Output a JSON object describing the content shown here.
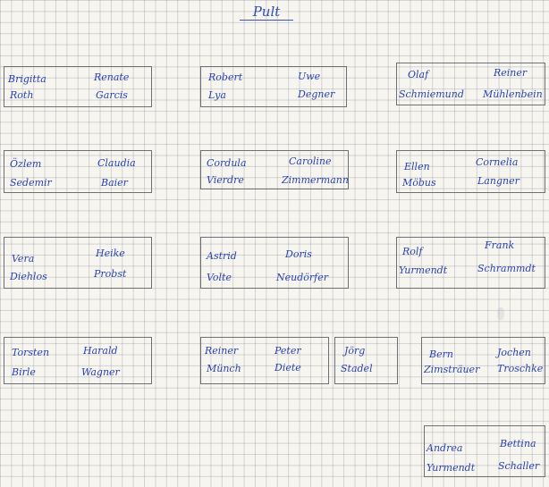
{
  "title": "Pult",
  "desks": [
    {
      "names": [
        [
          "Brigitta",
          "Renate"
        ],
        [
          "Roth",
          "Garcis"
        ]
      ]
    },
    {
      "names": [
        [
          "Robert",
          "Uwe"
        ],
        [
          "Lya",
          "Degner"
        ]
      ]
    },
    {
      "names": [
        [
          "Olaf",
          "Reiner"
        ],
        [
          "Schmiemund",
          "Mühlenbein"
        ]
      ]
    },
    {
      "names": [
        [
          "Özlem",
          "Claudia"
        ],
        [
          "Sedemir",
          "Baier"
        ]
      ]
    },
    {
      "names": [
        [
          "Cordula",
          "Caroline"
        ],
        [
          "Vierdre",
          "Zimmermann"
        ]
      ]
    },
    {
      "names": [
        [
          "Ellen",
          "Cornelia"
        ],
        [
          "Möbus",
          "Langner"
        ]
      ]
    },
    {
      "names": [
        [
          "Vera",
          "Heike"
        ],
        [
          "Diehlos",
          "Probst"
        ]
      ]
    },
    {
      "names": [
        [
          "Astrid",
          "Doris"
        ],
        [
          "Volte",
          "Neudörfer"
        ]
      ]
    },
    {
      "names": [
        [
          "Rolf",
          "Frank"
        ],
        [
          "Yurmendt",
          "Schrammdt"
        ]
      ]
    },
    {
      "names": [
        [
          "Torsten",
          "Harald"
        ],
        [
          "Birle",
          "Wagner"
        ]
      ]
    },
    {
      "names": [
        [
          "Reiner",
          "Peter"
        ],
        [
          "Münch",
          "Diete"
        ]
      ]
    },
    {
      "names": [
        [
          "Jörg",
          ""
        ],
        [
          "Stadel",
          ""
        ]
      ]
    },
    {
      "names": [
        [
          "Bern",
          "Jochen"
        ],
        [
          "Zimsträuer",
          "Troschke"
        ]
      ]
    },
    {
      "names": [
        [
          "Andrea",
          "Bettina"
        ],
        [
          "Yurmendt",
          "Schaller"
        ]
      ]
    }
  ]
}
